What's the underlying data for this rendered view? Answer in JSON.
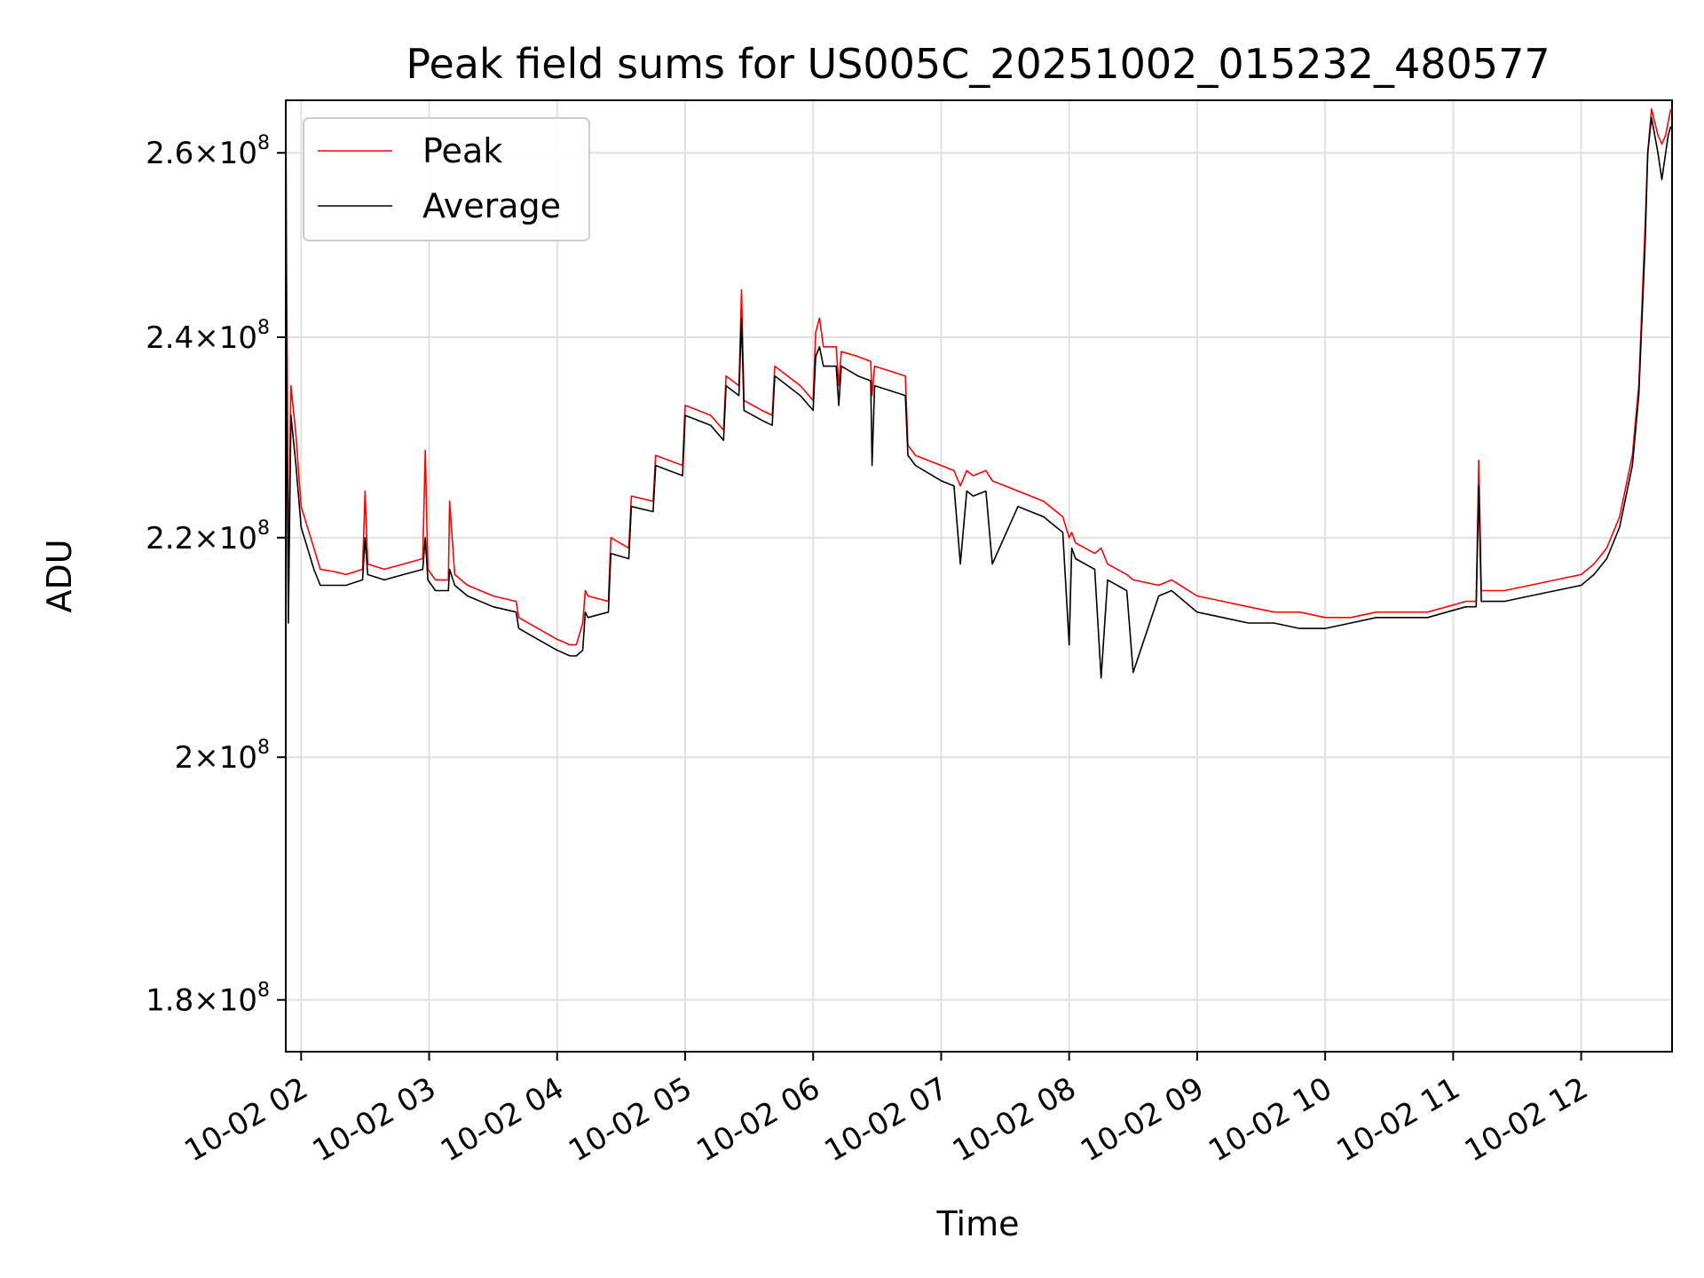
{
  "chart_data": {
    "type": "line",
    "title": "Peak field sums for US005C_20251002_015232_480577",
    "xlabel": "Time",
    "ylabel": "ADU",
    "yscale": "log",
    "grid": true,
    "legend_position": "upper-left",
    "x_unit": "hours since 10-02 00:00",
    "xlim": [
      1.88,
      12.71
    ],
    "ylim": [
      176000000.0,
      266000000.0
    ],
    "x_ticks": [
      {
        "value": 2,
        "label": "10-02 02"
      },
      {
        "value": 3,
        "label": "10-02 03"
      },
      {
        "value": 4,
        "label": "10-02 04"
      },
      {
        "value": 5,
        "label": "10-02 05"
      },
      {
        "value": 6,
        "label": "10-02 06"
      },
      {
        "value": 7,
        "label": "10-02 07"
      },
      {
        "value": 8,
        "label": "10-02 08"
      },
      {
        "value": 9,
        "label": "10-02 09"
      },
      {
        "value": 10,
        "label": "10-02 10"
      },
      {
        "value": 11,
        "label": "10-02 11"
      },
      {
        "value": 12,
        "label": "10-02 12"
      }
    ],
    "y_ticks": [
      {
        "value": 180000000.0,
        "mantissa": "1.8",
        "exp": "8"
      },
      {
        "value": 200000000.0,
        "mantissa": "2",
        "exp": "8"
      },
      {
        "value": 220000000.0,
        "mantissa": "2.2",
        "exp": "8"
      },
      {
        "value": 240000000.0,
        "mantissa": "2.4",
        "exp": "8"
      },
      {
        "value": 260000000.0,
        "mantissa": "2.6",
        "exp": "8"
      }
    ],
    "series": [
      {
        "name": "Peak",
        "color": "#ff0000",
        "x": [
          1.88,
          1.9,
          1.92,
          1.96,
          2.0,
          2.05,
          2.1,
          2.15,
          2.25,
          2.35,
          2.48,
          2.5,
          2.52,
          2.65,
          2.8,
          2.95,
          2.97,
          2.99,
          3.05,
          3.15,
          3.16,
          3.2,
          3.3,
          3.5,
          3.68,
          3.7,
          3.85,
          4.0,
          4.1,
          4.15,
          4.2,
          4.22,
          4.24,
          4.4,
          4.42,
          4.56,
          4.58,
          4.75,
          4.77,
          4.98,
          5.0,
          5.2,
          5.3,
          5.32,
          5.42,
          5.44,
          5.46,
          5.6,
          5.68,
          5.7,
          5.9,
          6.0,
          6.02,
          6.05,
          6.08,
          6.18,
          6.2,
          6.22,
          6.35,
          6.45,
          6.46,
          6.48,
          6.6,
          6.72,
          6.74,
          6.8,
          7.0,
          7.1,
          7.15,
          7.2,
          7.25,
          7.35,
          7.4,
          7.6,
          7.8,
          7.95,
          8.0,
          8.02,
          8.05,
          8.2,
          8.25,
          8.3,
          8.45,
          8.5,
          8.7,
          8.8,
          9.0,
          9.2,
          9.4,
          9.6,
          9.8,
          10.0,
          10.2,
          10.4,
          10.6,
          10.8,
          10.95,
          11.1,
          11.18,
          11.2,
          11.22,
          11.4,
          11.6,
          11.8,
          12.0,
          12.1,
          12.2,
          12.3,
          12.4,
          12.45,
          12.5,
          12.52,
          12.55,
          12.6,
          12.63,
          12.66,
          12.68,
          12.7
        ],
        "values": [
          269000000.0,
          216000000.0,
          235000000.0,
          230000000.0,
          223000000.0,
          221000000.0,
          219000000.0,
          217000000.0,
          216800000.0,
          216500000.0,
          217000000.0,
          224500000.0,
          217500000.0,
          217000000.0,
          217500000.0,
          218000000.0,
          228500000.0,
          217000000.0,
          216000000.0,
          216000000.0,
          223500000.0,
          216500000.0,
          215500000.0,
          214500000.0,
          214000000.0,
          212500000.0,
          211500000.0,
          210500000.0,
          210000000.0,
          210000000.0,
          212000000.0,
          215000000.0,
          214500000.0,
          214000000.0,
          220000000.0,
          219000000.0,
          224000000.0,
          223500000.0,
          228000000.0,
          227000000.0,
          233000000.0,
          232000000.0,
          230500000.0,
          236000000.0,
          235000000.0,
          245000000.0,
          233500000.0,
          232500000.0,
          232000000.0,
          237000000.0,
          235000000.0,
          233500000.0,
          240500000.0,
          242000000.0,
          239000000.0,
          239000000.0,
          235000000.0,
          238500000.0,
          238000000.0,
          237500000.0,
          234000000.0,
          237000000.0,
          236500000.0,
          236000000.0,
          229000000.0,
          228000000.0,
          227000000.0,
          226500000.0,
          225000000.0,
          226500000.0,
          226000000.0,
          226500000.0,
          225500000.0,
          224500000.0,
          223500000.0,
          222000000.0,
          220000000.0,
          220500000.0,
          219500000.0,
          218500000.0,
          219000000.0,
          217500000.0,
          216500000.0,
          216000000.0,
          215500000.0,
          216000000.0,
          214500000.0,
          214000000.0,
          213500000.0,
          213000000.0,
          213000000.0,
          212500000.0,
          212500000.0,
          213000000.0,
          213000000.0,
          213000000.0,
          213500000.0,
          214000000.0,
          214000000.0,
          227500000.0,
          215000000.0,
          215000000.0,
          215500000.0,
          216000000.0,
          216500000.0,
          217500000.0,
          219000000.0,
          222000000.0,
          228000000.0,
          235000000.0,
          252000000.0,
          260000000.0,
          265000000.0,
          262000000.0,
          261000000.0,
          262000000.0,
          263500000.0,
          265000000.0
        ]
      },
      {
        "name": "Average",
        "color": "#000000",
        "x": [
          1.88,
          1.9,
          1.92,
          1.96,
          2.0,
          2.05,
          2.1,
          2.15,
          2.25,
          2.35,
          2.48,
          2.5,
          2.52,
          2.65,
          2.8,
          2.95,
          2.97,
          2.99,
          3.05,
          3.15,
          3.16,
          3.2,
          3.3,
          3.5,
          3.68,
          3.7,
          3.85,
          4.0,
          4.1,
          4.15,
          4.2,
          4.22,
          4.24,
          4.4,
          4.42,
          4.56,
          4.58,
          4.75,
          4.77,
          4.98,
          5.0,
          5.2,
          5.3,
          5.32,
          5.42,
          5.44,
          5.46,
          5.6,
          5.68,
          5.7,
          5.9,
          6.0,
          6.02,
          6.05,
          6.08,
          6.18,
          6.2,
          6.22,
          6.35,
          6.45,
          6.46,
          6.48,
          6.6,
          6.72,
          6.74,
          6.8,
          7.0,
          7.1,
          7.15,
          7.2,
          7.25,
          7.35,
          7.4,
          7.6,
          7.8,
          7.95,
          8.0,
          8.02,
          8.05,
          8.2,
          8.25,
          8.3,
          8.45,
          8.5,
          8.7,
          8.8,
          9.0,
          9.2,
          9.4,
          9.6,
          9.8,
          10.0,
          10.2,
          10.4,
          10.6,
          10.8,
          10.95,
          11.1,
          11.18,
          11.2,
          11.22,
          11.4,
          11.6,
          11.8,
          12.0,
          12.1,
          12.2,
          12.3,
          12.4,
          12.45,
          12.5,
          12.52,
          12.55,
          12.6,
          12.63,
          12.66,
          12.68,
          12.7
        ],
        "values": [
          250000000.0,
          212000000.0,
          232000000.0,
          227000000.0,
          221000000.0,
          219000000.0,
          217000000.0,
          215500000.0,
          215500000.0,
          215500000.0,
          216000000.0,
          220000000.0,
          216500000.0,
          216000000.0,
          216500000.0,
          217000000.0,
          220000000.0,
          216000000.0,
          215000000.0,
          215000000.0,
          217000000.0,
          215500000.0,
          214500000.0,
          213500000.0,
          213000000.0,
          211500000.0,
          210500000.0,
          209500000.0,
          209000000.0,
          209000000.0,
          209500000.0,
          213000000.0,
          212500000.0,
          213000000.0,
          218500000.0,
          218000000.0,
          223000000.0,
          222500000.0,
          227000000.0,
          226000000.0,
          232000000.0,
          231000000.0,
          229500000.0,
          235000000.0,
          234000000.0,
          242000000.0,
          232500000.0,
          231500000.0,
          231000000.0,
          236000000.0,
          234000000.0,
          232500000.0,
          238000000.0,
          239000000.0,
          237000000.0,
          237000000.0,
          233000000.0,
          237000000.0,
          236000000.0,
          235500000.0,
          227000000.0,
          235000000.0,
          234500000.0,
          234000000.0,
          228000000.0,
          227000000.0,
          225500000.0,
          225000000.0,
          217500000.0,
          224500000.0,
          224000000.0,
          224500000.0,
          217500000.0,
          223000000.0,
          222000000.0,
          220500000.0,
          210000000.0,
          219000000.0,
          218000000.0,
          217000000.0,
          207000000.0,
          216000000.0,
          215000000.0,
          207500000.0,
          214500000.0,
          215000000.0,
          213000000.0,
          212500000.0,
          212000000.0,
          212000000.0,
          211500000.0,
          211500000.0,
          212000000.0,
          212500000.0,
          212500000.0,
          212500000.0,
          213000000.0,
          213500000.0,
          213500000.0,
          225000000.0,
          214000000.0,
          214000000.0,
          214500000.0,
          215000000.0,
          215500000.0,
          216500000.0,
          218000000.0,
          221000000.0,
          227000000.0,
          234000000.0,
          250000000.0,
          260000000.0,
          264000000.0,
          260000000.0,
          257000000.0,
          260000000.0,
          262000000.0,
          263000000.0
        ]
      }
    ]
  }
}
